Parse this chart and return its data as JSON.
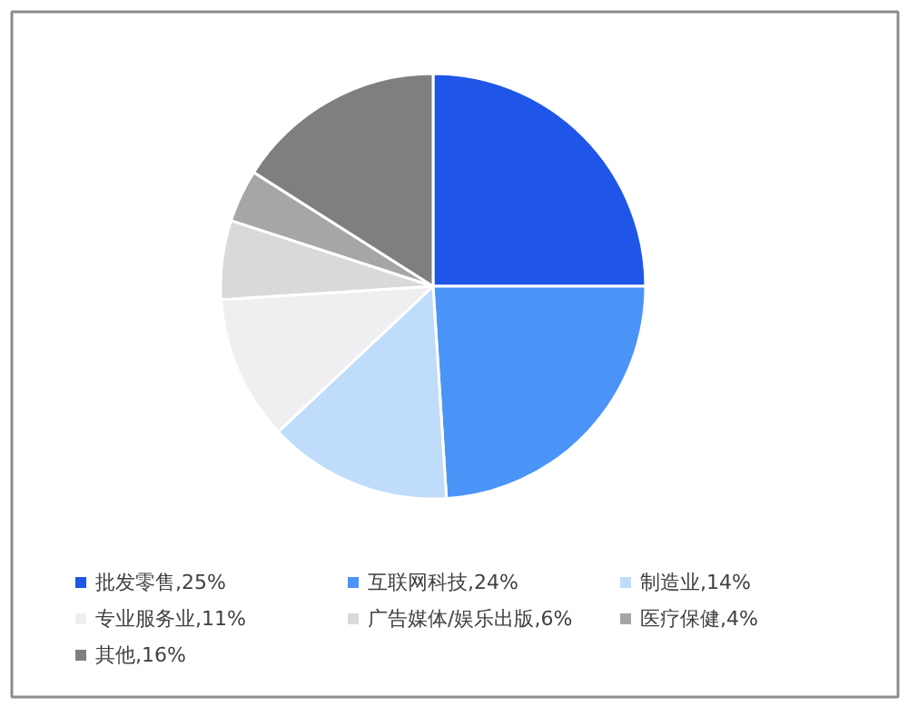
{
  "chart_data": {
    "type": "pie",
    "categories": [
      "批发零售",
      "互联网科技",
      "制造业",
      "专业服务业",
      "广告媒体/娱乐出版",
      "医疗保健",
      "其他"
    ],
    "values": [
      25,
      24,
      14,
      11,
      6,
      4,
      16
    ],
    "value_labels": [
      "25%",
      "24%",
      "14%",
      "11%",
      "6%",
      "4%",
      "16%"
    ],
    "colors": [
      "#1f56e8",
      "#4b94f7",
      "#bfdcfa",
      "#efeff1",
      "#d9d9d9",
      "#a6a6a6",
      "#7f7f7f"
    ],
    "legend": "bottom"
  }
}
